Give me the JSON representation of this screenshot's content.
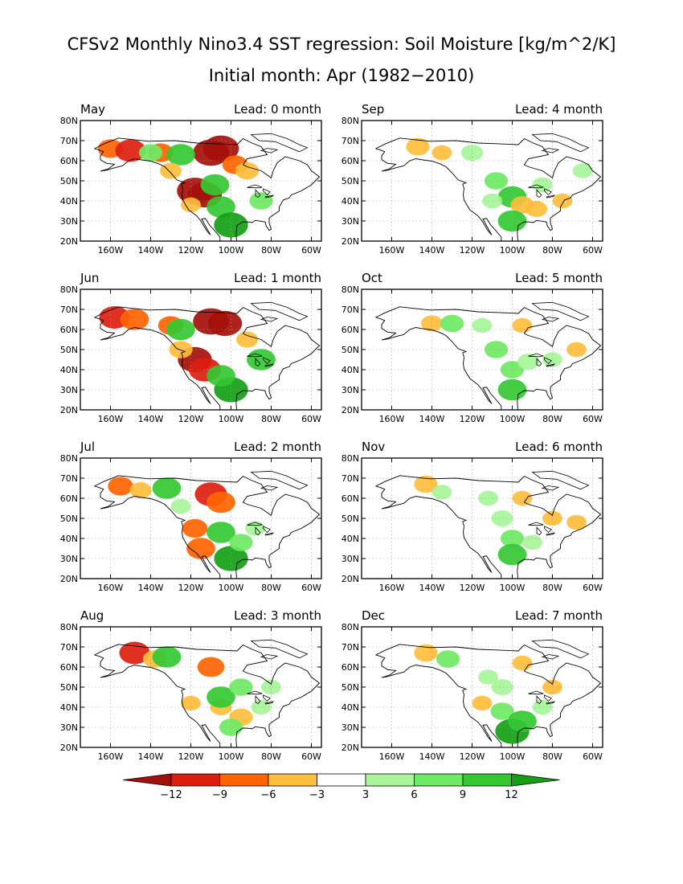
{
  "figure": {
    "title": "CFSv2 Monthly Nino3.4 SST regression: Soil Moisture [kg/m^2/K]",
    "subtitle": "Initial month: Apr (1982−2010)"
  },
  "axes": {
    "lat_ticks": [
      "80N",
      "70N",
      "60N",
      "50N",
      "40N",
      "30N",
      "20N"
    ],
    "lon_ticks": [
      "160W",
      "140W",
      "120W",
      "100W",
      "80W",
      "60W"
    ],
    "lon_range": [
      -175,
      -55
    ],
    "lat_range": [
      20,
      80
    ]
  },
  "panels": [
    {
      "month": "May",
      "lead": "Lead: 0 month"
    },
    {
      "month": "Sep",
      "lead": "Lead: 4 month"
    },
    {
      "month": "Jun",
      "lead": "Lead: 1 month"
    },
    {
      "month": "Oct",
      "lead": "Lead: 5 month"
    },
    {
      "month": "Jul",
      "lead": "Lead: 2 month"
    },
    {
      "month": "Nov",
      "lead": "Lead: 6 month"
    },
    {
      "month": "Aug",
      "lead": "Lead: 3 month"
    },
    {
      "month": "Dec",
      "lead": "Lead: 7 month"
    }
  ],
  "colorbar": {
    "labels": [
      "−12",
      "−9",
      "−6",
      "−3",
      "3",
      "6",
      "9",
      "12"
    ],
    "colors": [
      "#a50f0a",
      "#dc1e0f",
      "#ff6400",
      "#ffbe3c",
      "#ffffff",
      "#a8f59a",
      "#6eea64",
      "#34c832",
      "#15a015",
      "#15a015"
    ],
    "bin_colors": [
      "#dc1e0f",
      "#ff6400",
      "#ffbe3c",
      "#ffffff",
      "#a8f59a",
      "#6eea64",
      "#34c832"
    ],
    "low_color": "#a50f0a",
    "high_color": "#15a015"
  },
  "chart_data": {
    "type": "heatmap",
    "units": "kg/m^2/K",
    "levels": [
      -12,
      -9,
      -6,
      -3,
      3,
      6,
      9,
      12
    ],
    "note_blobs_are": "approximate regression anomaly patches [lon, lat, value]",
    "panels": [
      {
        "month": "May",
        "blobs": [
          [
            -110,
            64,
            -13
          ],
          [
            -105,
            66,
            -13
          ],
          [
            -118,
            45,
            -13
          ],
          [
            -113,
            43,
            -12
          ],
          [
            -160,
            66,
            -7
          ],
          [
            -150,
            65,
            -10
          ],
          [
            -135,
            64,
            -7
          ],
          [
            -98,
            58,
            -7
          ],
          [
            -92,
            55,
            -6
          ],
          [
            -105,
            37,
            9
          ],
          [
            -100,
            28,
            12
          ],
          [
            -108,
            48,
            9
          ],
          [
            -125,
            63,
            9
          ],
          [
            -140,
            64,
            6
          ],
          [
            -85,
            40,
            6
          ],
          [
            -120,
            38,
            -4
          ],
          [
            -130,
            55,
            -5
          ]
        ]
      },
      {
        "month": "Sep",
        "blobs": [
          [
            -147,
            67,
            -6
          ],
          [
            -135,
            64,
            -4
          ],
          [
            -108,
            50,
            6
          ],
          [
            -100,
            42,
            9
          ],
          [
            -95,
            38,
            -6
          ],
          [
            -88,
            36,
            -5
          ],
          [
            -100,
            30,
            9
          ],
          [
            -110,
            40,
            4
          ],
          [
            -120,
            64,
            5
          ],
          [
            -85,
            48,
            4
          ],
          [
            -75,
            40,
            -4
          ],
          [
            -65,
            55,
            4
          ]
        ]
      },
      {
        "month": "Jun",
        "blobs": [
          [
            -110,
            64,
            -13
          ],
          [
            -103,
            63,
            -12
          ],
          [
            -118,
            45,
            -12
          ],
          [
            -113,
            40,
            -11
          ],
          [
            -158,
            66,
            -10
          ],
          [
            -148,
            65,
            -9
          ],
          [
            -130,
            62,
            -7
          ],
          [
            -100,
            30,
            12
          ],
          [
            -105,
            37,
            9
          ],
          [
            -125,
            60,
            9
          ],
          [
            -85,
            45,
            9
          ],
          [
            -92,
            55,
            -5
          ],
          [
            -125,
            50,
            -6
          ]
        ]
      },
      {
        "month": "Oct",
        "blobs": [
          [
            -140,
            63,
            -5
          ],
          [
            -130,
            63,
            6
          ],
          [
            -108,
            50,
            6
          ],
          [
            -100,
            40,
            6
          ],
          [
            -100,
            30,
            9
          ],
          [
            -92,
            44,
            5
          ],
          [
            -115,
            62,
            4
          ],
          [
            -95,
            62,
            -4
          ],
          [
            -80,
            45,
            4
          ],
          [
            -68,
            50,
            -4
          ]
        ]
      },
      {
        "month": "Jul",
        "blobs": [
          [
            -110,
            62,
            -11
          ],
          [
            -105,
            58,
            -9
          ],
          [
            -118,
            45,
            -7
          ],
          [
            -115,
            35,
            -9
          ],
          [
            -155,
            66,
            -7
          ],
          [
            -145,
            64,
            -5
          ],
          [
            -132,
            65,
            9
          ],
          [
            -105,
            43,
            9
          ],
          [
            -100,
            30,
            12
          ],
          [
            -95,
            38,
            6
          ],
          [
            -88,
            45,
            4
          ],
          [
            -125,
            56,
            4
          ]
        ]
      },
      {
        "month": "Nov",
        "blobs": [
          [
            -143,
            67,
            -6
          ],
          [
            -135,
            63,
            4
          ],
          [
            -105,
            50,
            5
          ],
          [
            -100,
            40,
            6
          ],
          [
            -100,
            32,
            9
          ],
          [
            -112,
            60,
            4
          ],
          [
            -95,
            60,
            -4
          ],
          [
            -80,
            50,
            -4
          ],
          [
            -90,
            38,
            4
          ],
          [
            -68,
            48,
            -4
          ]
        ]
      },
      {
        "month": "Aug",
        "blobs": [
          [
            -148,
            67,
            -10
          ],
          [
            -138,
            64,
            -6
          ],
          [
            -110,
            60,
            -8
          ],
          [
            -105,
            40,
            -5
          ],
          [
            -95,
            35,
            -6
          ],
          [
            -120,
            42,
            -4
          ],
          [
            -132,
            65,
            9
          ],
          [
            -105,
            45,
            9
          ],
          [
            -95,
            50,
            6
          ],
          [
            -100,
            30,
            6
          ],
          [
            -85,
            40,
            4
          ],
          [
            -80,
            50,
            4
          ]
        ]
      },
      {
        "month": "Dec",
        "blobs": [
          [
            -143,
            67,
            -6
          ],
          [
            -132,
            64,
            6
          ],
          [
            -105,
            50,
            5
          ],
          [
            -105,
            38,
            6
          ],
          [
            -100,
            28,
            12
          ],
          [
            -95,
            33,
            9
          ],
          [
            -112,
            55,
            4
          ],
          [
            -95,
            62,
            -4
          ],
          [
            -80,
            50,
            -4
          ],
          [
            -115,
            42,
            -4
          ],
          [
            -85,
            40,
            4
          ]
        ]
      }
    ]
  }
}
